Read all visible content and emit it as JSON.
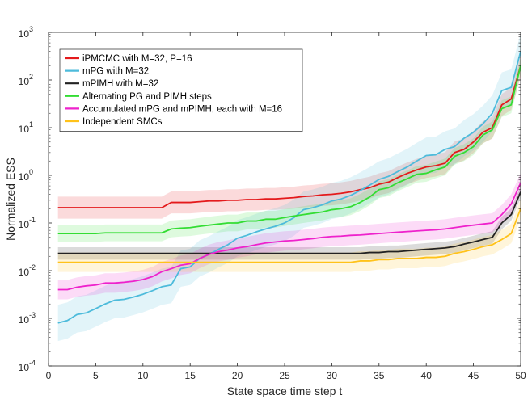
{
  "chart_data": {
    "type": "line",
    "title": "",
    "xlabel": "State space time step t",
    "ylabel": "Normalized ESS",
    "xlim": [
      0,
      50
    ],
    "ylim_log10": [
      -4,
      3
    ],
    "yscale": "log",
    "x_ticks": [
      0,
      5,
      10,
      15,
      20,
      25,
      30,
      35,
      40,
      45,
      50
    ],
    "y_ticks": [
      {
        "base": "10",
        "exp": "-4"
      },
      {
        "base": "10",
        "exp": "-3"
      },
      {
        "base": "10",
        "exp": "-2"
      },
      {
        "base": "10",
        "exp": "-1"
      },
      {
        "base": "10",
        "exp": "0"
      },
      {
        "base": "10",
        "exp": "1"
      },
      {
        "base": "10",
        "exp": "2"
      },
      {
        "base": "10",
        "exp": "3"
      }
    ],
    "legend_position": "top-left",
    "x": [
      1,
      2,
      3,
      4,
      5,
      6,
      7,
      8,
      9,
      10,
      11,
      12,
      13,
      14,
      15,
      16,
      17,
      18,
      19,
      20,
      21,
      22,
      23,
      24,
      25,
      26,
      27,
      28,
      29,
      30,
      31,
      32,
      33,
      34,
      35,
      36,
      37,
      38,
      39,
      40,
      41,
      42,
      43,
      44,
      45,
      46,
      47,
      48,
      49,
      50
    ],
    "series": [
      {
        "name": "iPMCMC with M=32, P=16",
        "color": "#e41a1c",
        "values": [
          0.21,
          0.21,
          0.21,
          0.21,
          0.21,
          0.21,
          0.21,
          0.21,
          0.21,
          0.21,
          0.21,
          0.21,
          0.27,
          0.27,
          0.27,
          0.28,
          0.29,
          0.29,
          0.3,
          0.3,
          0.31,
          0.31,
          0.32,
          0.32,
          0.33,
          0.34,
          0.36,
          0.37,
          0.39,
          0.4,
          0.42,
          0.45,
          0.5,
          0.55,
          0.65,
          0.72,
          0.9,
          1.1,
          1.3,
          1.5,
          1.6,
          1.8,
          3.0,
          3.5,
          5.0,
          8.0,
          10.0,
          30.0,
          40.0,
          200.0
        ],
        "band_factor": 1.7
      },
      {
        "name": "mPG with M=32",
        "color": "#4dbbdb",
        "values": [
          0.0008,
          0.0009,
          0.0012,
          0.0013,
          0.0016,
          0.002,
          0.0024,
          0.0025,
          0.0028,
          0.0032,
          0.0038,
          0.0046,
          0.005,
          0.011,
          0.012,
          0.018,
          0.022,
          0.028,
          0.035,
          0.048,
          0.055,
          0.065,
          0.075,
          0.085,
          0.1,
          0.13,
          0.19,
          0.21,
          0.24,
          0.29,
          0.32,
          0.38,
          0.48,
          0.62,
          0.82,
          0.95,
          1.2,
          1.5,
          2.0,
          2.6,
          2.7,
          3.5,
          4.0,
          6.0,
          8.0,
          12.0,
          20.0,
          60.0,
          70.0,
          400.0
        ],
        "band_factor": 2.4
      },
      {
        "name": "mPIMH with M=32",
        "color": "#222222",
        "values": [
          0.023,
          0.023,
          0.023,
          0.023,
          0.023,
          0.023,
          0.023,
          0.023,
          0.023,
          0.023,
          0.023,
          0.023,
          0.023,
          0.023,
          0.023,
          0.023,
          0.023,
          0.023,
          0.023,
          0.023,
          0.023,
          0.023,
          0.023,
          0.023,
          0.023,
          0.023,
          0.023,
          0.023,
          0.023,
          0.023,
          0.023,
          0.023,
          0.023,
          0.024,
          0.024,
          0.025,
          0.025,
          0.026,
          0.027,
          0.028,
          0.029,
          0.03,
          0.032,
          0.036,
          0.04,
          0.045,
          0.05,
          0.1,
          0.15,
          0.45
        ],
        "band_factor": 1.35
      },
      {
        "name": "Alternating PG and PIMH steps",
        "color": "#33dd33",
        "values": [
          0.06,
          0.06,
          0.06,
          0.06,
          0.06,
          0.062,
          0.062,
          0.062,
          0.062,
          0.062,
          0.062,
          0.062,
          0.075,
          0.078,
          0.08,
          0.085,
          0.09,
          0.095,
          0.1,
          0.1,
          0.11,
          0.11,
          0.12,
          0.12,
          0.13,
          0.14,
          0.15,
          0.16,
          0.17,
          0.19,
          0.2,
          0.22,
          0.27,
          0.35,
          0.5,
          0.55,
          0.7,
          0.85,
          1.05,
          1.1,
          1.3,
          1.5,
          2.5,
          3.0,
          4.0,
          7.0,
          9.0,
          25.0,
          30.0,
          200.0
        ],
        "band_factor": 1.5
      },
      {
        "name": "Accumulated mPG and mPIMH, each with M=16",
        "color": "#ee22cc",
        "values": [
          0.004,
          0.004,
          0.0045,
          0.0048,
          0.005,
          0.0055,
          0.0055,
          0.0057,
          0.006,
          0.0065,
          0.0075,
          0.0095,
          0.011,
          0.013,
          0.014,
          0.018,
          0.022,
          0.025,
          0.027,
          0.03,
          0.032,
          0.035,
          0.038,
          0.04,
          0.042,
          0.043,
          0.045,
          0.047,
          0.05,
          0.052,
          0.053,
          0.055,
          0.056,
          0.058,
          0.06,
          0.062,
          0.064,
          0.066,
          0.068,
          0.07,
          0.072,
          0.075,
          0.08,
          0.085,
          0.09,
          0.095,
          0.1,
          0.15,
          0.25,
          0.7
        ],
        "band_factor": 1.6
      },
      {
        "name": "Independent SMCs",
        "color": "#ffc21a",
        "values": [
          0.015,
          0.015,
          0.015,
          0.015,
          0.015,
          0.015,
          0.015,
          0.015,
          0.015,
          0.015,
          0.015,
          0.015,
          0.015,
          0.015,
          0.015,
          0.015,
          0.015,
          0.015,
          0.015,
          0.015,
          0.015,
          0.015,
          0.015,
          0.015,
          0.015,
          0.015,
          0.015,
          0.015,
          0.015,
          0.015,
          0.015,
          0.015,
          0.016,
          0.016,
          0.017,
          0.017,
          0.018,
          0.018,
          0.018,
          0.019,
          0.019,
          0.02,
          0.023,
          0.025,
          0.028,
          0.032,
          0.035,
          0.045,
          0.06,
          0.2
        ],
        "band_factor": 1.6
      }
    ]
  }
}
